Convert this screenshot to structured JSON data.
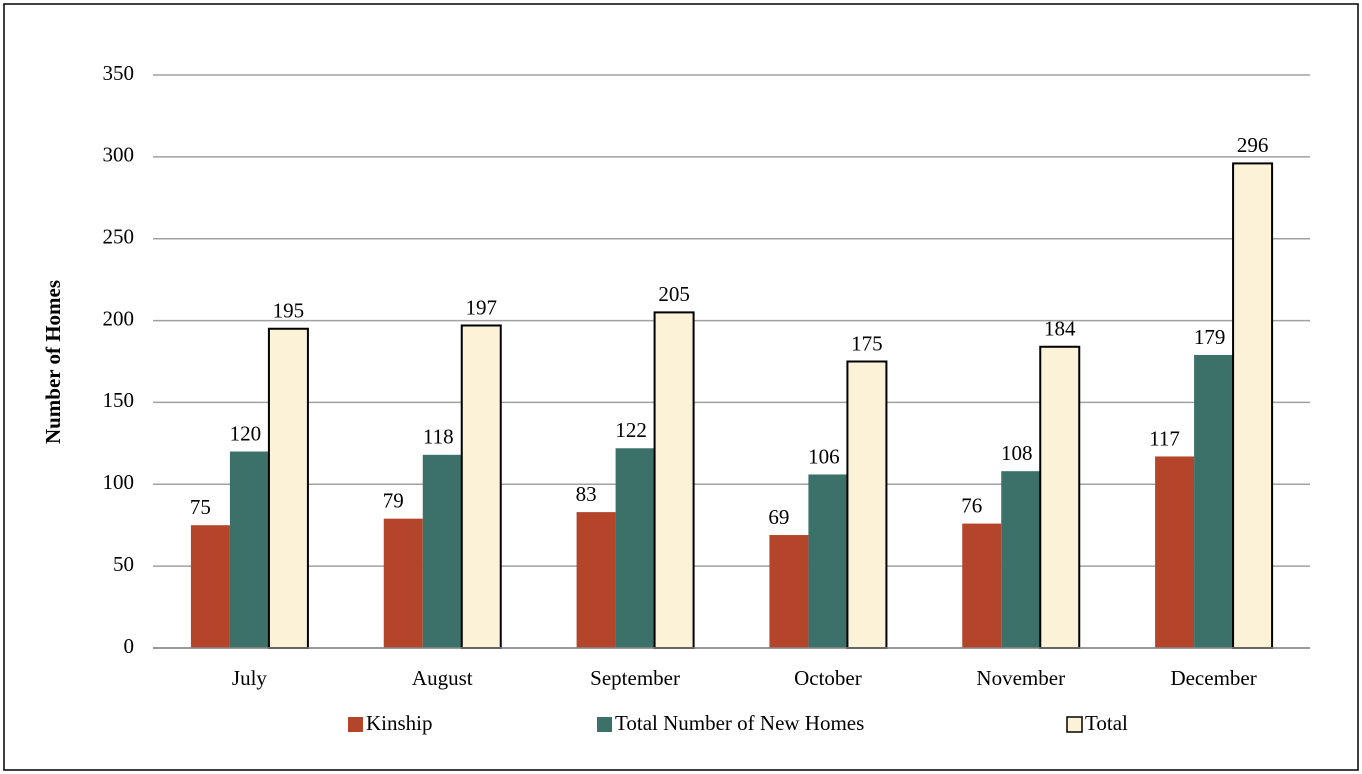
{
  "chart_data": {
    "type": "bar",
    "y_label": "Number of Homes",
    "categories": [
      "July",
      "August",
      "September",
      "October",
      "November",
      "December"
    ],
    "series": [
      {
        "name": "Kinship",
        "color": "#b5452a",
        "values": [
          75,
          79,
          83,
          69,
          76,
          117
        ]
      },
      {
        "name": "Total Number of New Homes",
        "color": "#3b7168",
        "values": [
          120,
          118,
          122,
          106,
          108,
          179
        ]
      },
      {
        "name": "Total",
        "color": "#fbf2d7",
        "values": [
          195,
          197,
          205,
          175,
          184,
          296
        ]
      }
    ],
    "ylim": [
      0,
      350
    ],
    "yticks": [
      0,
      50,
      100,
      150,
      200,
      250,
      300,
      350
    ],
    "grid": true,
    "legend": "bottom"
  }
}
